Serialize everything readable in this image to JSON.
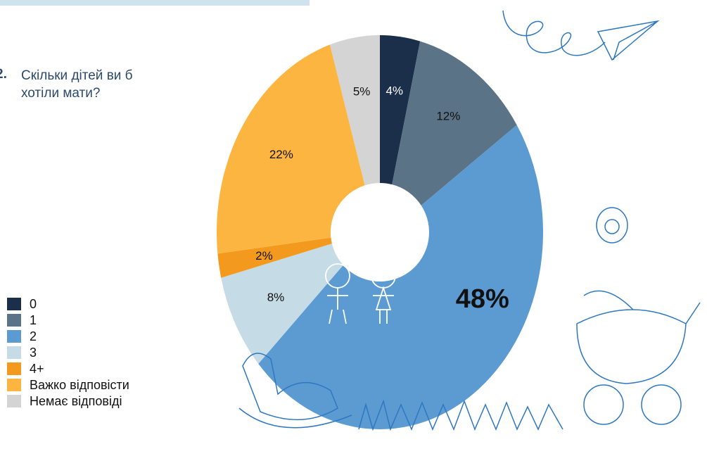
{
  "chart_data": {
    "type": "donut",
    "number": "2.",
    "title": "Скільки дітей ви б хотіли мати?",
    "categories": [
      "0",
      "1",
      "2",
      "3",
      "4+",
      "Важко відповісти",
      "Немає відповіді"
    ],
    "values": [
      4,
      12,
      48,
      8,
      2,
      22,
      5
    ],
    "value_labels": [
      "4%",
      "12%",
      "48%",
      "8%",
      "2%",
      "22%",
      "5%"
    ],
    "colors": [
      "#1c2f4a",
      "#5a7386",
      "#5b9bd1",
      "#c5dbe6",
      "#f39a1e",
      "#fbb540",
      "#d4d4d4"
    ]
  }
}
